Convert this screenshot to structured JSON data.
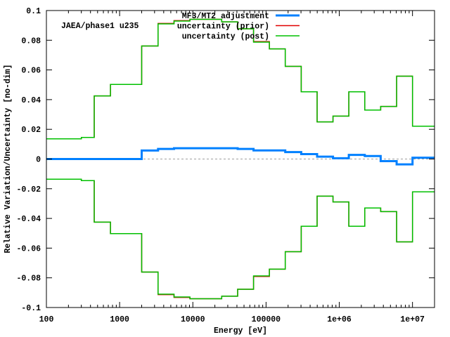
{
  "chart_data": {
    "type": "line",
    "step": true,
    "annotation": "JAEA/phase1 u235",
    "xlabel": "Energy [eV]",
    "ylabel": "Relative Variation/Uncertainty [no-dim]",
    "xscale": "log",
    "xlim": [
      100,
      20000000
    ],
    "ylim": [
      -0.1,
      0.1
    ],
    "xticks": [
      100,
      1000,
      10000,
      100000,
      1000000,
      10000000
    ],
    "xtick_labels": [
      "100",
      "1000",
      "10000",
      "100000",
      "1e+06",
      "1e+07"
    ],
    "yticks": [
      -0.1,
      -0.08,
      -0.06,
      -0.04,
      -0.02,
      0,
      0.02,
      0.04,
      0.06,
      0.08,
      0.1
    ],
    "ytick_labels": [
      "-0.1",
      "-0.08",
      "-0.06",
      "-0.04",
      "-0.02",
      "0",
      "0.02",
      "0.04",
      "0.06",
      "0.08",
      "0.1"
    ],
    "legend_position": "top-right",
    "energy_boundaries": [
      100,
      300,
      450,
      750,
      2000,
      3350,
      5530,
      9120,
      24800,
      40900,
      67400,
      111000,
      183000,
      302000,
      498000,
      821000,
      1350000,
      2230000,
      3680000,
      6070000,
      10000000,
      20000000
    ],
    "series": [
      {
        "name": "MF3/MT2 adjustment",
        "color": "#0080ff",
        "symmetric": false,
        "values": [
          0,
          0,
          0,
          0,
          0.0057,
          0.0068,
          0.0073,
          0.0073,
          0.0073,
          0.0068,
          0.0058,
          0.0058,
          0.0047,
          0.0033,
          0.0016,
          0.0005,
          0.0028,
          0.002,
          -0.0014,
          -0.0036,
          0.0009
        ]
      },
      {
        "name": "uncertainty (prior)",
        "color": "#e00000",
        "symmetric": true,
        "values": [
          0.0136,
          0.0145,
          0.0425,
          0.0502,
          0.0761,
          0.0913,
          0.0932,
          0.0941,
          0.0924,
          0.0877,
          0.0791,
          0.0742,
          0.0624,
          0.0453,
          0.025,
          0.0289,
          0.0453,
          0.033,
          0.0354,
          0.0558,
          0.0221
        ]
      },
      {
        "name": "uncertainty (post)",
        "color": "#00c000",
        "symmetric": true,
        "values": [
          0.0136,
          0.0145,
          0.0425,
          0.0502,
          0.0761,
          0.091,
          0.0929,
          0.0941,
          0.0924,
          0.0877,
          0.0787,
          0.0742,
          0.0624,
          0.0453,
          0.025,
          0.0289,
          0.0453,
          0.033,
          0.0354,
          0.0558,
          0.0221
        ]
      }
    ]
  }
}
